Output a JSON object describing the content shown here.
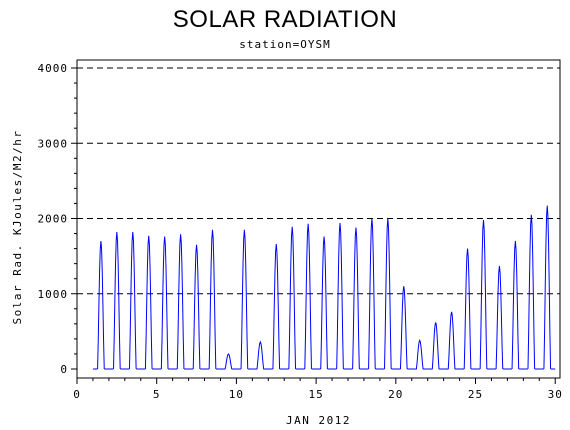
{
  "chart_data": {
    "type": "line",
    "title": "SOLAR RADIATION",
    "subtitle": "station=OYSM",
    "xlabel": "JAN 2012",
    "ylabel": "Solar Rad. KJoules/M2/hr",
    "xlim": [
      0,
      30.3
    ],
    "ylim": [
      0,
      4000
    ],
    "x_ticks": [
      0,
      5,
      10,
      15,
      20,
      25,
      30
    ],
    "y_ticks": [
      0,
      1000,
      2000,
      3000,
      4000
    ],
    "grid": "horizontal-dashed",
    "series": [
      {
        "color": "#0000ff",
        "daily_peaks": [
          {
            "day": 1,
            "peak": 1700
          },
          {
            "day": 2,
            "peak": 1820
          },
          {
            "day": 3,
            "peak": 1820
          },
          {
            "day": 4,
            "peak": 1770
          },
          {
            "day": 5,
            "peak": 1760
          },
          {
            "day": 6,
            "peak": 1790
          },
          {
            "day": 7,
            "peak": 1650
          },
          {
            "day": 8,
            "peak": 1850
          },
          {
            "day": 9,
            "peak": 200
          },
          {
            "day": 10,
            "peak": 1850
          },
          {
            "day": 11,
            "peak": 360
          },
          {
            "day": 12,
            "peak": 1660
          },
          {
            "day": 13,
            "peak": 1890
          },
          {
            "day": 14,
            "peak": 1930
          },
          {
            "day": 15,
            "peak": 1760
          },
          {
            "day": 16,
            "peak": 1940
          },
          {
            "day": 17,
            "peak": 1880
          },
          {
            "day": 18,
            "peak": 2000
          },
          {
            "day": 19,
            "peak": 2000
          },
          {
            "day": 20,
            "peak": 1100
          },
          {
            "day": 21,
            "peak": 380
          },
          {
            "day": 22,
            "peak": 620
          },
          {
            "day": 23,
            "peak": 760
          },
          {
            "day": 24,
            "peak": 1600
          },
          {
            "day": 25,
            "peak": 1980
          },
          {
            "day": 26,
            "peak": 1370
          },
          {
            "day": 27,
            "peak": 1700
          },
          {
            "day": 28,
            "peak": 2050
          },
          {
            "day": 29,
            "peak": 2170
          }
        ]
      }
    ]
  }
}
